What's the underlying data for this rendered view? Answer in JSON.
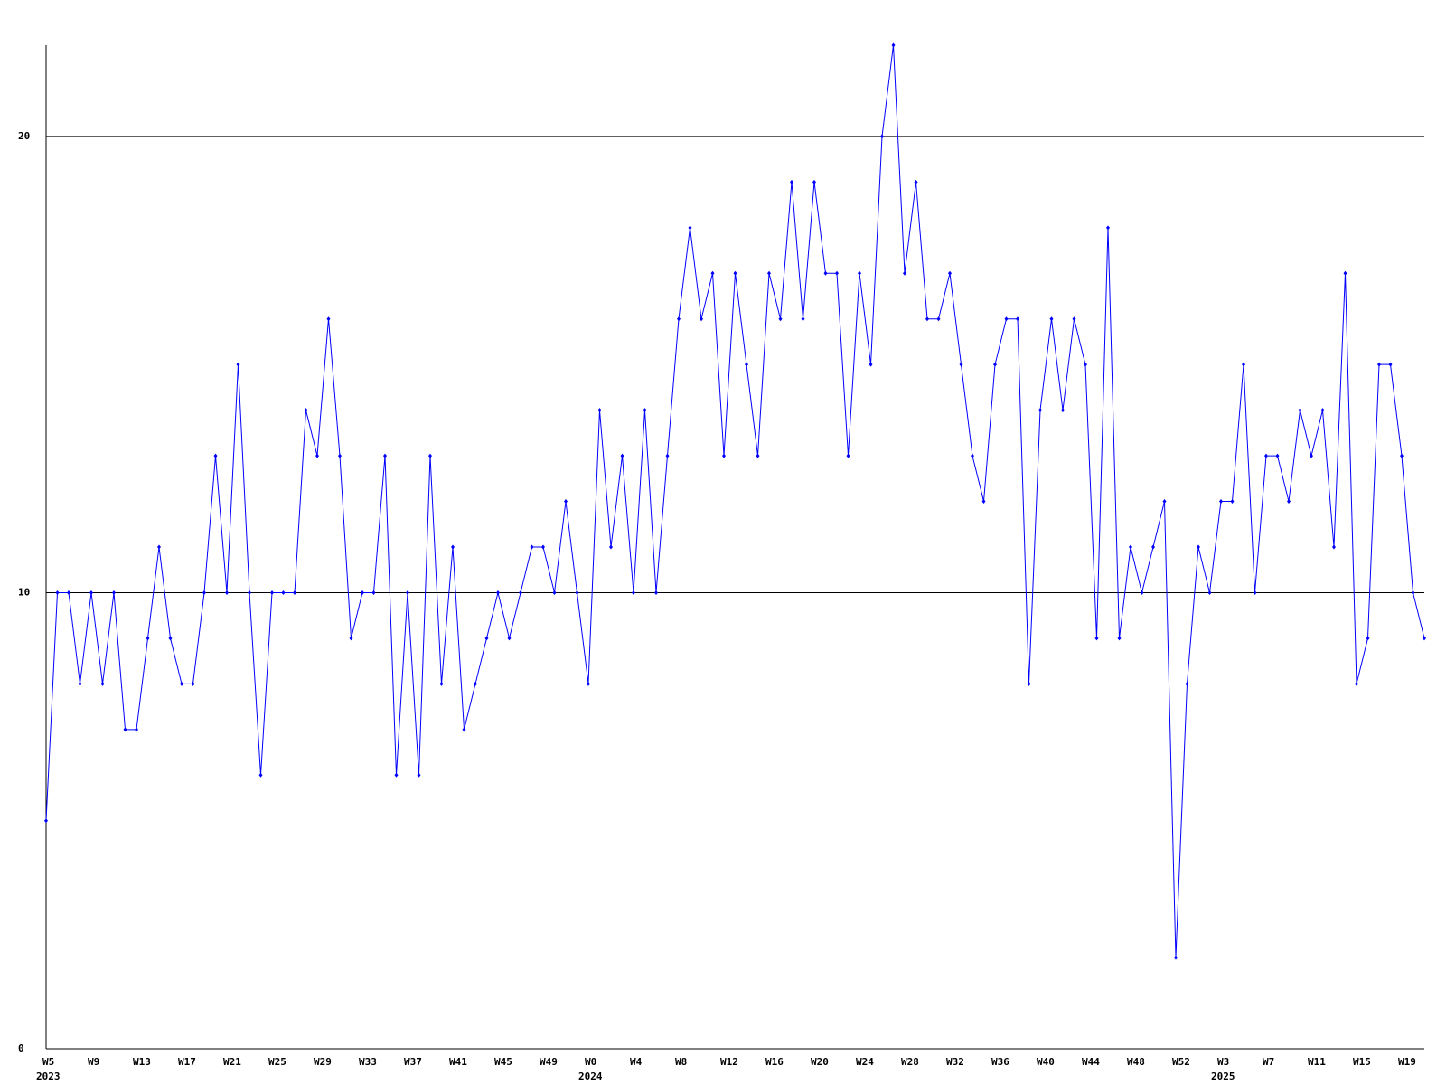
{
  "chart_data": {
    "type": "line",
    "categories": [
      "W5",
      null,
      null,
      null,
      "W9",
      null,
      null,
      null,
      "W13",
      null,
      null,
      null,
      "W17",
      null,
      null,
      null,
      "W21",
      null,
      null,
      null,
      "W25",
      null,
      null,
      null,
      "W29",
      null,
      null,
      null,
      "W33",
      null,
      null,
      null,
      "W37",
      null,
      null,
      null,
      "W41",
      null,
      null,
      null,
      "W45",
      null,
      null,
      null,
      "W49",
      null,
      null,
      null,
      "W0",
      null,
      null,
      null,
      "W4",
      null,
      null,
      null,
      "W8",
      null,
      null,
      null,
      "W12",
      null,
      null,
      null,
      "W16",
      null,
      null,
      null,
      "W20",
      null,
      null,
      null,
      "W24",
      null,
      null,
      null,
      "W28",
      null,
      null,
      null,
      "W32",
      null,
      null,
      null,
      "W36",
      null,
      null,
      null,
      "W40",
      null,
      null,
      null,
      "W44",
      null,
      null,
      null,
      "W48",
      null,
      null,
      null,
      "W52",
      null,
      null,
      null,
      "W3",
      null,
      null,
      null,
      "W7",
      null,
      null,
      null,
      "W11",
      null,
      null,
      null,
      "W15",
      null,
      null,
      null,
      "W19",
      null,
      null
    ],
    "category_years": [
      "2023",
      null,
      null,
      null,
      null,
      null,
      null,
      null,
      null,
      null,
      null,
      null,
      null,
      null,
      null,
      null,
      null,
      null,
      null,
      null,
      null,
      null,
      null,
      null,
      null,
      null,
      null,
      null,
      null,
      null,
      null,
      null,
      null,
      null,
      null,
      null,
      null,
      null,
      null,
      null,
      null,
      null,
      null,
      null,
      null,
      null,
      null,
      null,
      "2024",
      null,
      null,
      null,
      null,
      null,
      null,
      null,
      null,
      null,
      null,
      null,
      null,
      null,
      null,
      null,
      null,
      null,
      null,
      null,
      null,
      null,
      null,
      null,
      null,
      null,
      null,
      null,
      null,
      null,
      null,
      null,
      null,
      null,
      null,
      null,
      null,
      null,
      null,
      null,
      null,
      null,
      null,
      null,
      null,
      null,
      null,
      null,
      null,
      null,
      null,
      null,
      null,
      null,
      null,
      null,
      "2025",
      null,
      null,
      null,
      null,
      null,
      null,
      null,
      null,
      null,
      null,
      null,
      null,
      null,
      null,
      null,
      null,
      null,
      null,
      null,
      null
    ],
    "values": [
      5,
      10,
      10,
      8,
      10,
      8,
      10,
      7,
      7,
      9,
      11,
      9,
      8,
      8,
      10,
      13,
      10,
      15,
      10,
      6,
      10,
      10,
      10,
      14,
      13,
      16,
      13,
      9,
      10,
      10,
      13,
      6,
      10,
      6,
      13,
      8,
      11,
      7,
      8,
      9,
      10,
      9,
      10,
      11,
      11,
      10,
      12,
      10,
      8,
      14,
      11,
      13,
      10,
      14,
      10,
      13,
      16,
      18,
      16,
      17,
      13,
      17,
      15,
      13,
      17,
      16,
      19,
      16,
      19,
      17,
      17,
      13,
      17,
      15,
      20,
      22,
      17,
      19,
      16,
      16,
      17,
      15,
      13,
      12,
      15,
      16,
      16,
      8,
      14,
      16,
      14,
      16,
      15,
      9,
      18,
      9,
      11,
      10,
      11,
      12,
      2,
      8,
      11,
      10,
      12,
      12,
      15,
      10,
      13,
      13,
      12,
      14,
      13,
      14,
      11,
      17,
      8,
      9,
      15,
      15,
      13,
      10,
      9
    ],
    "color": "#0000ff",
    "ylim": [
      0,
      22
    ],
    "yticks": [
      0,
      10,
      20
    ],
    "grid": true
  }
}
